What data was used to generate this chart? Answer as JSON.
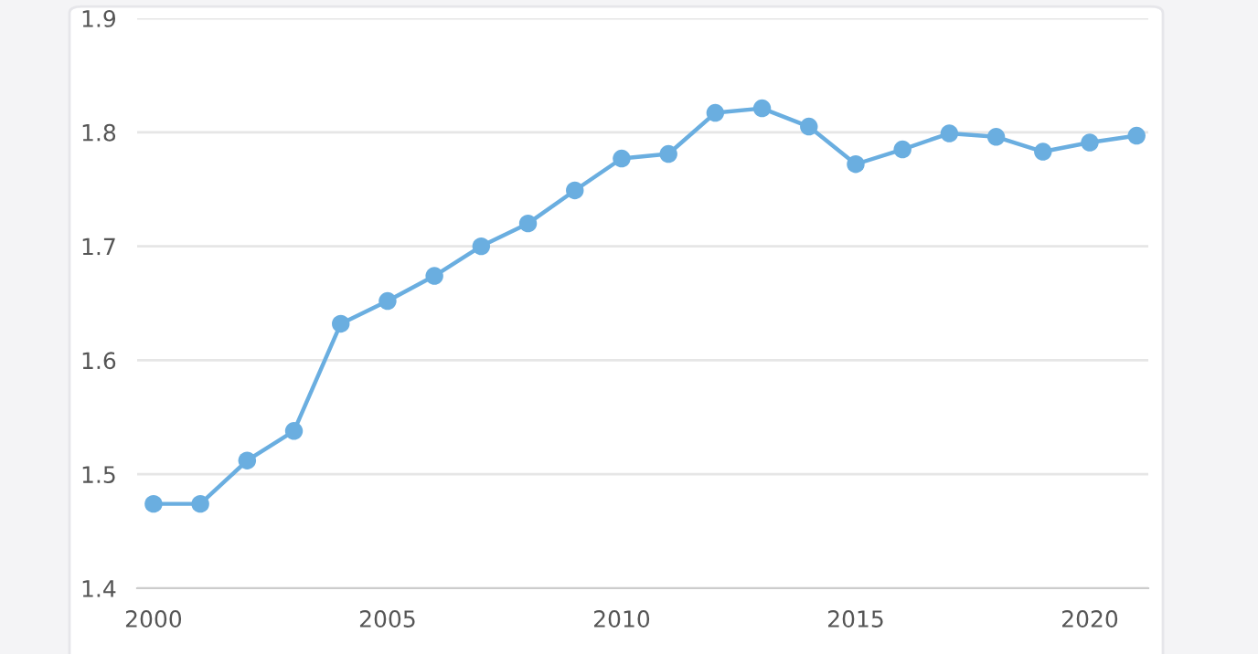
{
  "chart_data": {
    "type": "line",
    "x": [
      2000,
      2001,
      2002,
      2003,
      2004,
      2005,
      2006,
      2007,
      2008,
      2009,
      2010,
      2011,
      2012,
      2013,
      2014,
      2015,
      2016,
      2017,
      2018,
      2019,
      2020,
      2021
    ],
    "series": [
      {
        "color": "#6aaee0",
        "values": [
          1.474,
          1.474,
          1.512,
          1.538,
          1.632,
          1.652,
          1.674,
          1.7,
          1.72,
          1.749,
          1.777,
          1.781,
          1.817,
          1.821,
          1.805,
          1.772,
          1.785,
          1.799,
          1.796,
          1.783,
          1.791,
          1.797
        ]
      }
    ],
    "xlim": [
      1999.65,
      2021.25
    ],
    "xticks": [
      2000,
      2005,
      2010,
      2015,
      2020
    ],
    "ylim": [
      1.4,
      1.9
    ],
    "yticks": [
      1.4,
      1.5,
      1.6,
      1.7,
      1.8,
      1.9
    ],
    "grid": "y",
    "marker": "circle",
    "line_style": "solid",
    "legend": false
  }
}
